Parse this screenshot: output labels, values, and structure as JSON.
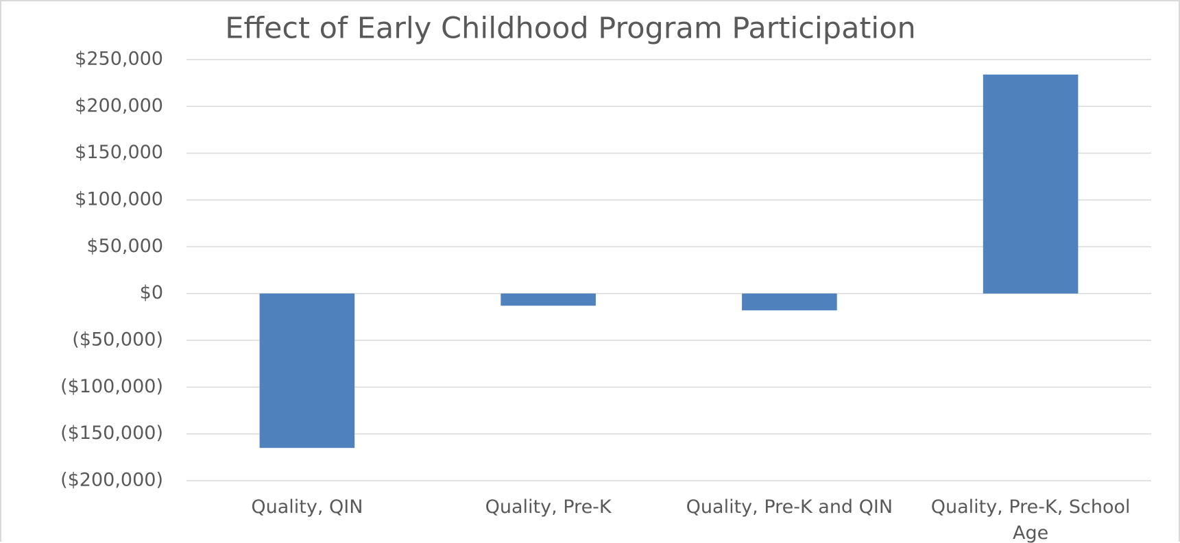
{
  "chart_data": {
    "type": "bar",
    "title": "Effect of Early Childhood Program Participation",
    "categories": [
      "Quality, QIN",
      "Quality, Pre-K",
      "Quality, Pre-K and QIN",
      "Quality, Pre-K, School Age"
    ],
    "values": [
      -165000,
      -13000,
      -18000,
      234000
    ],
    "color": "#4f81bd",
    "ylim": [
      -200000,
      250000
    ],
    "yticks": [
      {
        "value": -200000,
        "label": "($200,000)"
      },
      {
        "value": -150000,
        "label": "($150,000)"
      },
      {
        "value": -100000,
        "label": "($100,000)"
      },
      {
        "value": -50000,
        "label": "($50,000)"
      },
      {
        "value": 0,
        "label": "$0"
      },
      {
        "value": 50000,
        "label": "$50,000"
      },
      {
        "value": 100000,
        "label": "$100,000"
      },
      {
        "value": 150000,
        "label": "$150,000"
      },
      {
        "value": 200000,
        "label": "$200,000"
      },
      {
        "value": 250000,
        "label": "$250,000"
      }
    ],
    "grid": true
  }
}
